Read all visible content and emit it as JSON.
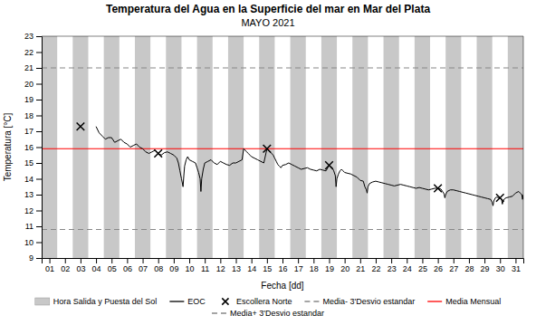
{
  "chart_data": {
    "type": "line",
    "title": "Temperatura del Agua en la Superficie del mar en Mar del Plata",
    "subtitle": "MAYO 2021",
    "x_label": "Fecha [dd]",
    "y_label": "Temperatura [°C]",
    "xlim": [
      0.5,
      31.5
    ],
    "ylim": [
      9,
      23
    ],
    "xticks": [
      {
        "value": 1,
        "label": "01"
      },
      {
        "value": 2,
        "label": "02"
      },
      {
        "value": 3,
        "label": "03"
      },
      {
        "value": 4,
        "label": "04"
      },
      {
        "value": 5,
        "label": "05"
      },
      {
        "value": 6,
        "label": "06"
      },
      {
        "value": 7,
        "label": "07"
      },
      {
        "value": 8,
        "label": "08"
      },
      {
        "value": 9,
        "label": "09"
      },
      10,
      11,
      12,
      13,
      14,
      15,
      16,
      17,
      18,
      19,
      20,
      21,
      22,
      23,
      24,
      25,
      26,
      27,
      28,
      29,
      30,
      31
    ],
    "yticks": [
      9,
      10,
      11,
      12,
      13,
      14,
      15,
      16,
      17,
      18,
      19,
      20,
      21,
      22,
      23
    ],
    "grid": false,
    "legend": "bottom",
    "series": [
      {
        "name": "Hora Salida y Puesta del Sol",
        "type": "band",
        "color": "#c8c8c8",
        "x_start": [
          0.5,
          2.5,
          4.5,
          6.5,
          8.5,
          10.5,
          12.5,
          14.5,
          16.5,
          18.5,
          20.5,
          22.5,
          24.5,
          26.5,
          28.5,
          30.5
        ],
        "x_end": [
          1.5,
          3.5,
          5.5,
          7.5,
          9.5,
          11.5,
          13.5,
          15.5,
          17.5,
          19.5,
          21.5,
          23.5,
          25.5,
          27.5,
          29.5,
          31.5
        ]
      },
      {
        "name": "EOC",
        "type": "line",
        "color": "#000000",
        "line_style": "solid",
        "x": [
          4.0,
          4.2,
          4.4,
          4.6,
          4.8,
          5.0,
          5.2,
          5.4,
          5.6,
          5.8,
          6.0,
          6.2,
          6.4,
          6.6,
          6.8,
          7.0,
          7.2,
          7.4,
          7.6,
          7.8,
          8.0,
          8.2,
          8.4,
          8.6,
          8.8,
          9.0,
          9.2,
          9.3,
          9.4,
          9.5,
          9.6,
          9.65,
          9.7,
          9.8,
          9.9,
          10.0,
          10.2,
          10.4,
          10.5,
          10.6,
          10.7,
          10.75,
          10.8,
          10.9,
          11.0,
          11.2,
          11.4,
          11.6,
          11.8,
          12.0,
          12.2,
          12.4,
          12.6,
          12.8,
          13.0,
          13.2,
          13.4,
          13.5,
          13.6,
          13.7,
          13.8,
          13.9,
          14.0,
          14.2,
          14.4,
          14.6,
          14.8,
          15.0,
          15.2,
          15.4,
          15.5,
          15.6,
          15.7,
          15.8,
          15.9,
          16.0,
          16.2,
          16.4,
          16.6,
          16.8,
          17.0,
          17.2,
          17.4,
          17.6,
          17.8,
          18.0,
          18.2,
          18.4,
          18.6,
          18.8,
          19.0,
          19.2,
          19.3,
          19.4,
          19.45,
          19.5,
          19.6,
          19.7,
          19.8,
          19.9,
          20.0,
          20.2,
          20.4,
          20.6,
          20.8,
          21.0,
          21.2,
          21.3,
          21.4,
          21.45,
          21.5,
          21.6,
          21.8,
          22.0,
          22.2,
          22.4,
          22.6,
          22.8,
          23.0,
          23.2,
          23.4,
          23.6,
          23.8,
          24.0,
          24.2,
          24.4,
          24.6,
          24.8,
          25.0,
          25.2,
          25.4,
          25.6,
          25.8,
          26.0,
          26.2,
          26.3,
          26.4,
          26.45,
          26.5,
          26.6,
          26.8,
          27.0,
          27.2,
          27.4,
          27.6,
          27.8,
          28.0,
          28.2,
          28.4,
          28.6,
          28.8,
          29.0,
          29.2,
          29.4,
          29.5,
          29.55,
          29.6,
          29.7,
          29.8,
          29.9,
          30.0,
          30.1,
          30.15,
          30.2,
          30.3,
          30.4,
          30.6,
          30.8,
          31.0,
          31.2,
          31.3,
          31.4,
          31.45,
          31.5
        ],
        "values": [
          17.3,
          16.9,
          16.7,
          16.5,
          16.6,
          16.6,
          16.3,
          16.4,
          16.5,
          16.3,
          16.2,
          16.0,
          16.1,
          16.2,
          16.0,
          15.9,
          15.7,
          15.6,
          15.7,
          15.8,
          15.6,
          15.5,
          15.65,
          15.7,
          15.6,
          15.5,
          15.3,
          15.0,
          14.5,
          14.0,
          13.5,
          14.2,
          14.8,
          15.2,
          15.4,
          15.2,
          15.1,
          15.0,
          14.7,
          14.4,
          14.0,
          13.2,
          14.0,
          14.6,
          15.0,
          15.1,
          15.2,
          15.0,
          14.9,
          15.1,
          15.0,
          14.9,
          14.85,
          15.0,
          15.0,
          15.1,
          15.2,
          15.9,
          15.8,
          15.7,
          15.6,
          15.5,
          15.4,
          15.3,
          15.2,
          15.1,
          15.0,
          15.9,
          15.7,
          15.5,
          15.3,
          15.1,
          14.9,
          14.8,
          14.7,
          14.85,
          14.9,
          15.0,
          14.9,
          14.8,
          14.7,
          14.6,
          14.65,
          14.7,
          14.6,
          14.55,
          14.5,
          14.6,
          14.55,
          14.5,
          14.85,
          14.7,
          14.5,
          14.2,
          13.5,
          14.0,
          14.3,
          14.5,
          14.6,
          14.5,
          14.4,
          14.35,
          14.3,
          14.2,
          14.1,
          13.9,
          13.85,
          13.5,
          13.3,
          13.1,
          13.5,
          13.7,
          13.8,
          13.85,
          13.8,
          13.75,
          13.7,
          13.65,
          13.6,
          13.55,
          13.6,
          13.65,
          13.6,
          13.55,
          13.5,
          13.45,
          13.4,
          13.45,
          13.4,
          13.35,
          13.3,
          13.35,
          13.4,
          13.4,
          13.35,
          13.2,
          13.05,
          12.8,
          13.0,
          13.2,
          13.3,
          13.3,
          13.25,
          13.2,
          13.15,
          13.1,
          13.05,
          13.0,
          12.95,
          12.9,
          12.85,
          12.8,
          12.75,
          12.7,
          12.5,
          12.3,
          12.6,
          12.8,
          12.85,
          12.8,
          12.8,
          12.7,
          12.4,
          12.6,
          12.75,
          12.8,
          12.85,
          12.9,
          13.1,
          13.2,
          13.1,
          13.0,
          12.7,
          13.0
        ]
      },
      {
        "name": "Escollera Norte",
        "type": "scatter",
        "marker": "x",
        "color": "#000000",
        "x": [
          3,
          8,
          15,
          19,
          26,
          30
        ],
        "values": [
          17.3,
          15.6,
          15.9,
          14.85,
          13.4,
          12.8
        ]
      },
      {
        "name": "Media- 3'Desvio estandar",
        "type": "hline",
        "color": "#888888",
        "line_style": "dashed",
        "values": [
          10.8
        ]
      },
      {
        "name": "Media Mensual",
        "type": "hline",
        "color": "#ff0000",
        "line_style": "solid",
        "values": [
          15.9
        ]
      },
      {
        "name": "Media+ 3'Desvio estandar",
        "type": "hline",
        "color": "#888888",
        "line_style": "dashed",
        "values": [
          21.0
        ]
      }
    ]
  }
}
